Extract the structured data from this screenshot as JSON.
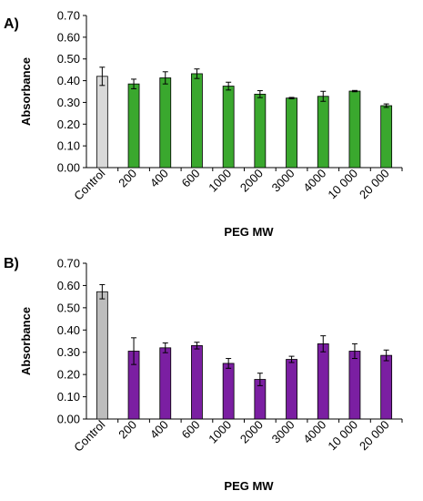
{
  "chart_data": [
    {
      "type": "bar",
      "panel_label": "A)",
      "xlabel": "PEG MW",
      "ylabel": "Absorbance",
      "ylim": [
        0,
        0.7
      ],
      "yticks": [
        "0.00",
        "0.10",
        "0.20",
        "0.30",
        "0.40",
        "0.50",
        "0.60",
        "0.70"
      ],
      "categories": [
        "Control",
        "200",
        "400",
        "600",
        "1000",
        "2000",
        "3000",
        "4000",
        "10 000",
        "20 000"
      ],
      "values": [
        0.42,
        0.385,
        0.413,
        0.432,
        0.375,
        0.338,
        0.32,
        0.328,
        0.352,
        0.285
      ],
      "errors": [
        0.042,
        0.022,
        0.028,
        0.022,
        0.018,
        0.016,
        0.003,
        0.023,
        0.003,
        0.008
      ],
      "colors": [
        "#d9d9d9",
        "#3aa82e",
        "#3aa82e",
        "#3aa82e",
        "#3aa82e",
        "#3aa82e",
        "#3aa82e",
        "#3aa82e",
        "#3aa82e",
        "#3aa82e"
      ],
      "grid": false
    },
    {
      "type": "bar",
      "panel_label": "B)",
      "xlabel": "PEG MW",
      "ylabel": "Absorbance",
      "ylim": [
        0,
        0.7
      ],
      "yticks": [
        "0.00",
        "0.10",
        "0.20",
        "0.30",
        "0.40",
        "0.50",
        "0.60",
        "0.70"
      ],
      "categories": [
        "Control",
        "200",
        "400",
        "600",
        "1000",
        "2000",
        "3000",
        "4000",
        "10 000",
        "20 000"
      ],
      "values": [
        0.572,
        0.305,
        0.32,
        0.33,
        0.25,
        0.178,
        0.268,
        0.338,
        0.305,
        0.286
      ],
      "errors": [
        0.032,
        0.06,
        0.022,
        0.015,
        0.022,
        0.028,
        0.014,
        0.036,
        0.033,
        0.024
      ],
      "colors": [
        "#bdbdbd",
        "#7b1fa2",
        "#7b1fa2",
        "#7b1fa2",
        "#7b1fa2",
        "#7b1fa2",
        "#7b1fa2",
        "#7b1fa2",
        "#7b1fa2",
        "#7b1fa2"
      ],
      "grid": false
    }
  ]
}
